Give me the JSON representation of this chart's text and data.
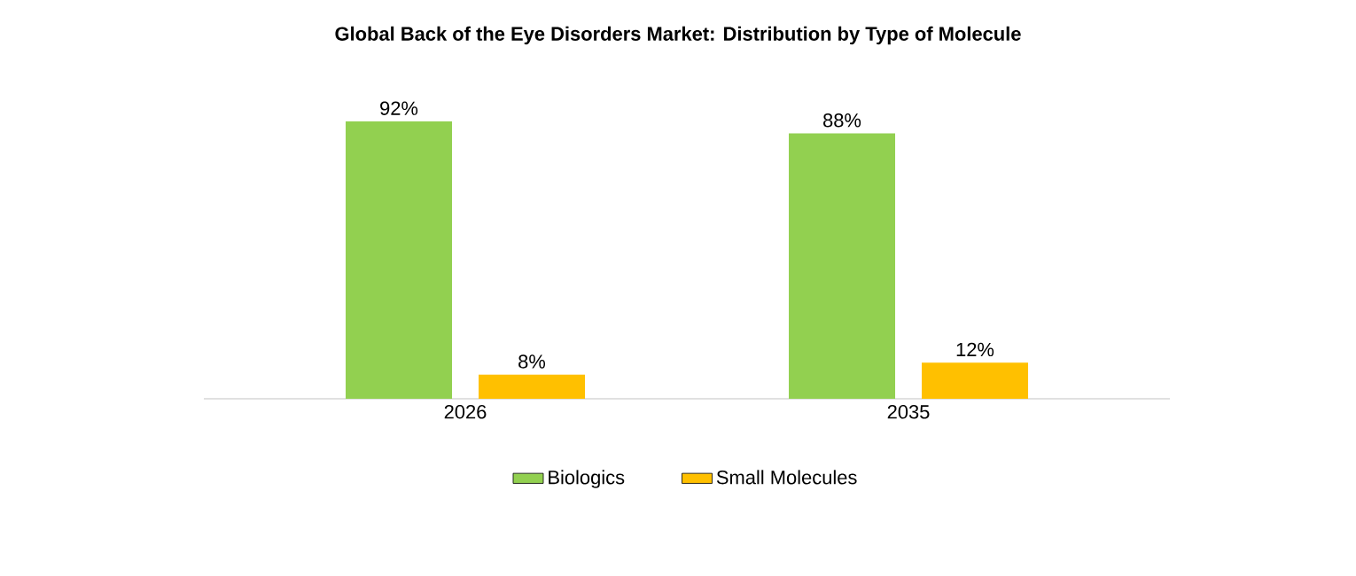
{
  "chart_data": {
    "type": "bar",
    "title": "Global Back of the Eye Disorders Market: Distribution by Type of Molecule",
    "categories": [
      "2026",
      "2035"
    ],
    "series": [
      {
        "name": "Biologics",
        "color": "#92d050",
        "values": [
          92,
          88
        ],
        "value_labels": [
          "92%",
          "88%"
        ]
      },
      {
        "name": "Small Molecules",
        "color": "#ffc000",
        "values": [
          8,
          12
        ],
        "value_labels": [
          "8%",
          "12%"
        ]
      }
    ],
    "legend": "bottom"
  }
}
